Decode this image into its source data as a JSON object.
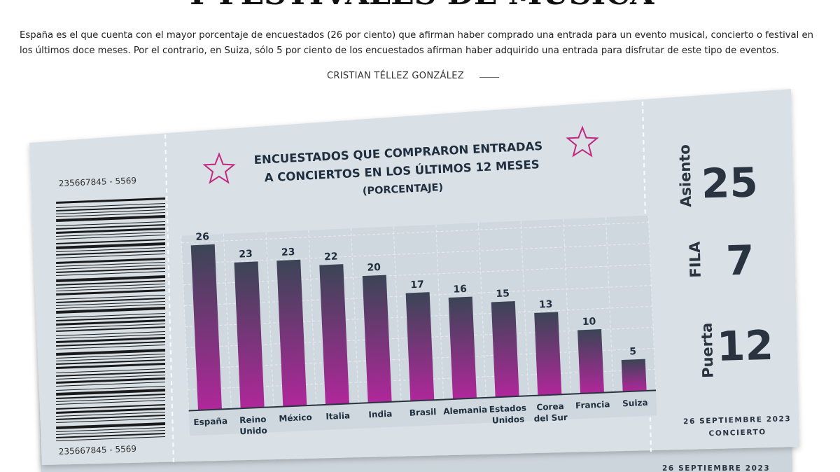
{
  "article": {
    "headline": "Y FESTIVALES DE MÚSICA",
    "intro": "España es el que cuenta con el mayor porcentaje de encuestados (26 por ciento) que afirman haber comprado una entrada para un evento musical, concierto o festival en los últimos doce meses. Por el contrario, en Suiza, sólo  5 por ciento de los encuestados afirman haber adquirido una entrada para disfrutar de este tipo de eventos.",
    "byline": "CRISTIAN TÉLLEZ GONZÁLEZ"
  },
  "ticket": {
    "serial_top": "235667845 - 5569",
    "serial_bottom": "235667845 - 5569",
    "stub": {
      "asiento_label": "Asiento",
      "asiento_value": "25",
      "fila_label": "FILA",
      "fila_value": "7",
      "puerta_label": "Puerta",
      "puerta_value": "12",
      "date": "26 SEPTIEMBRE 2023",
      "event": "CONCIERTO",
      "back_date": "26 SEPTIEMBRE 2023"
    },
    "colors": {
      "ticket": "#d9e1e6",
      "ticket_back": "#ccd5db",
      "bar_top": "#3b4556",
      "bar_bottom": "#b0279a",
      "star": "#c2287f"
    }
  },
  "chart_data": {
    "type": "bar",
    "title_lines": [
      "ENCUESTADOS QUE COMPRARON ENTRADAS",
      "A CONCIERTOS EN LOS ÚLTIMOS 12 MESES"
    ],
    "subtitle": "(PORCENTAJE)",
    "categories": [
      [
        "España"
      ],
      [
        "Reino",
        "Unido"
      ],
      [
        "México"
      ],
      [
        "Italia"
      ],
      [
        "India"
      ],
      [
        "Brasil"
      ],
      [
        "Alemania"
      ],
      [
        "Estados",
        "Unidos"
      ],
      [
        "Corea",
        "del Sur"
      ],
      [
        "Francia"
      ],
      [
        "Suiza"
      ]
    ],
    "values": [
      26,
      23,
      23,
      22,
      20,
      17,
      16,
      15,
      13,
      10,
      5
    ],
    "ylim": [
      0,
      30
    ],
    "grid": true
  }
}
